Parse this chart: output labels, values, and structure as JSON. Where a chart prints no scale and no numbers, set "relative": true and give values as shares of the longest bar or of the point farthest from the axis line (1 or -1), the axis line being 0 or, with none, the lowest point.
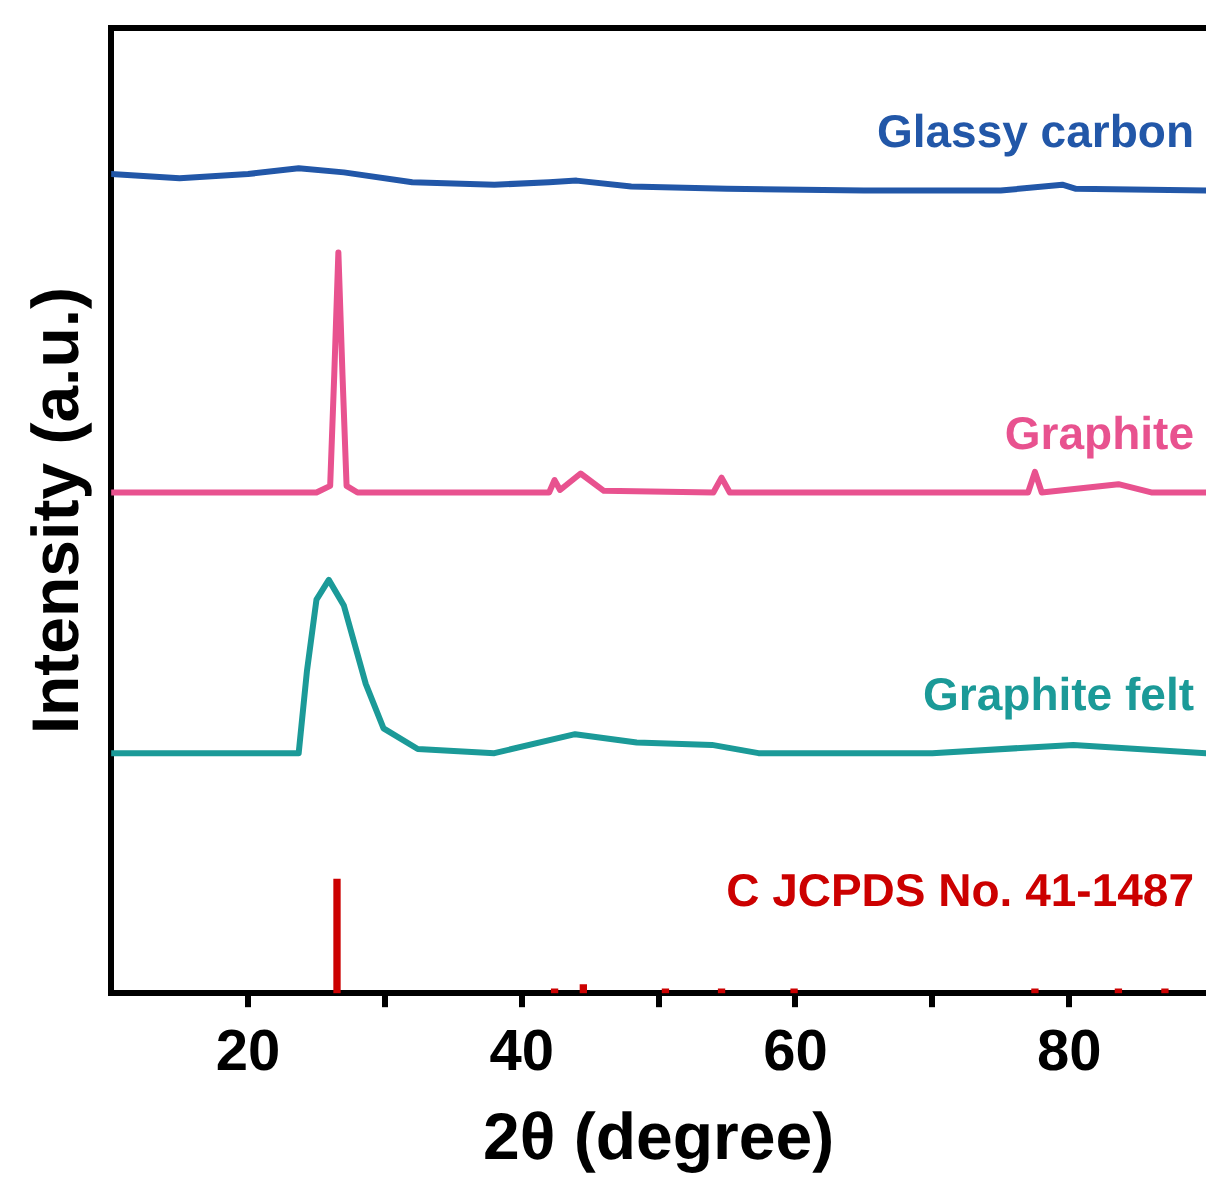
{
  "chart_data": {
    "type": "line",
    "relative": true,
    "xlabel": "2θ (degree)",
    "ylabel": "Intensity (a.u.)",
    "xlim": [
      10,
      90
    ],
    "xticks": [
      20,
      {
        "value": 30,
        "label": null
      },
      40,
      {
        "value": 50,
        "label": null
      },
      60,
      {
        "value": 70,
        "label": null
      },
      80
    ],
    "grid": false,
    "legend": false,
    "tick_labels": "x",
    "marker": "none",
    "line_style": "solid",
    "series": [
      {
        "name": "Glassy carbon",
        "color": "#2257a8",
        "x": [
          10,
          15,
          20,
          23.7,
          27,
          32,
          38,
          42,
          44,
          48,
          55,
          65,
          75,
          79.5,
          80.5,
          90
        ],
        "values": [
          0.993,
          0.988,
          0.993,
          1,
          0.995,
          0.983,
          0.98,
          0.983,
          0.985,
          0.978,
          0.975,
          0.973,
          0.973,
          0.98,
          0.975,
          0.973
        ]
      },
      {
        "name": "Graphite",
        "color": "#e8528f",
        "x": [
          10,
          25,
          26,
          26.3,
          26.6,
          26.9,
          27.2,
          28,
          42,
          42.4,
          42.8,
          44.3,
          46,
          54,
          54.6,
          55.2,
          77,
          77.5,
          78,
          83.6,
          86,
          90
        ],
        "values": [
          0.607,
          0.607,
          0.615,
          0.75,
          0.898,
          0.75,
          0.615,
          0.607,
          0.607,
          0.622,
          0.61,
          0.63,
          0.609,
          0.607,
          0.625,
          0.607,
          0.607,
          0.632,
          0.607,
          0.617,
          0.607,
          0.607
        ]
      },
      {
        "name": "Graphite felt",
        "color": "#1b9a98",
        "x": [
          10,
          23.7,
          24.3,
          25,
          25.9,
          27,
          28.6,
          29.9,
          32.4,
          38,
          43.9,
          48.4,
          53.9,
          57.3,
          70,
          80.3,
          90
        ],
        "values": [
          0.291,
          0.291,
          0.39,
          0.477,
          0.501,
          0.47,
          0.375,
          0.321,
          0.296,
          0.291,
          0.314,
          0.304,
          0.301,
          0.291,
          0.291,
          0.301,
          0.291
        ]
      },
      {
        "name": "C JCPDS No. 41-1487",
        "type": "bar",
        "color": "#cc0000",
        "x": [
          26.5,
          42.4,
          44.5,
          50.5,
          54.6,
          59.9,
          77.5,
          83.6,
          87
        ],
        "values": [
          0.138,
          0.005,
          0.01,
          0.005,
          0.005,
          0.005,
          0.005,
          0.005,
          0.005
        ]
      }
    ]
  }
}
